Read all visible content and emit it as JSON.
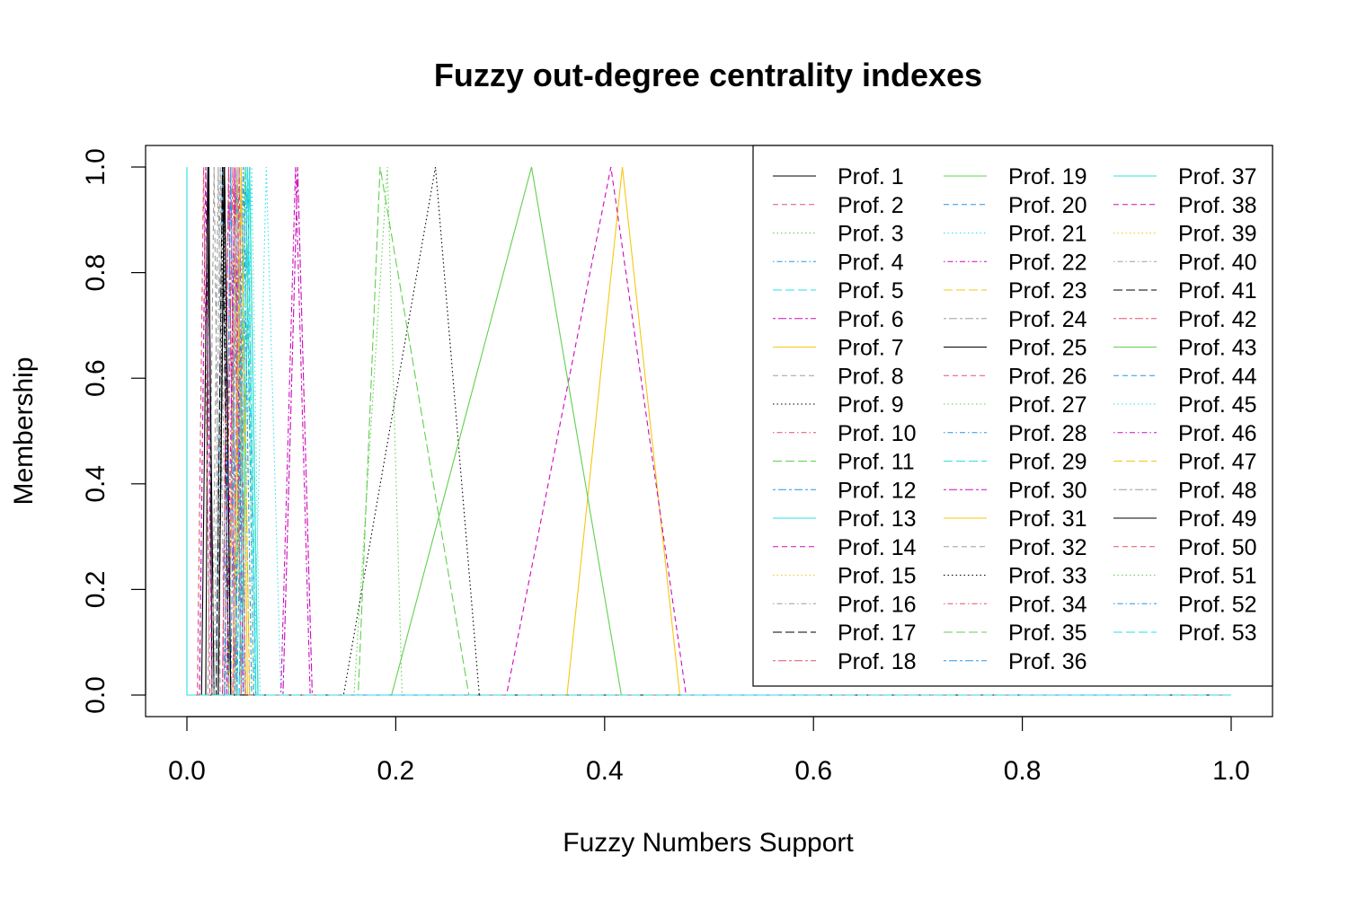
{
  "chart_data": {
    "type": "line",
    "title": "Fuzzy out-degree centrality indexes",
    "xlabel": "Fuzzy Numbers Support",
    "ylabel": "Membership",
    "xlim": [
      0,
      1
    ],
    "ylim": [
      0,
      1
    ],
    "x_ticks": [
      "0.0",
      "0.2",
      "0.4",
      "0.6",
      "0.8",
      "1.0"
    ],
    "y_ticks": [
      "0.0",
      "0.2",
      "0.4",
      "0.6",
      "0.8",
      "1.0"
    ],
    "grid": false,
    "legend_position": "top-right",
    "series": [
      {
        "name": "Prof. 1",
        "color": "#000000",
        "dash": "solid",
        "tri": [
          0.018,
          0.021,
          0.024
        ]
      },
      {
        "name": "Prof. 2",
        "color": "#DF536B",
        "dash": "dashed",
        "tri": [
          0.01,
          0.016,
          0.022
        ]
      },
      {
        "name": "Prof. 3",
        "color": "#61D04F",
        "dash": "dotted",
        "tri": [
          0.04,
          0.048,
          0.056
        ]
      },
      {
        "name": "Prof. 4",
        "color": "#2297E6",
        "dash": "dotdash",
        "tri": [
          0.028,
          0.034,
          0.04
        ]
      },
      {
        "name": "Prof. 5",
        "color": "#28E2E5",
        "dash": "longdash",
        "tri": [
          0.05,
          0.058,
          0.066
        ]
      },
      {
        "name": "Prof. 6",
        "color": "#CD0BBC",
        "dash": "twodash",
        "tri": [
          0.034,
          0.04,
          0.046
        ]
      },
      {
        "name": "Prof. 7",
        "color": "#F5C710",
        "dash": "solid",
        "tri": [
          0.046,
          0.052,
          0.058
        ]
      },
      {
        "name": "Prof. 8",
        "color": "#9E9E9E",
        "dash": "dashed",
        "tri": [
          0.02,
          0.026,
          0.032
        ]
      },
      {
        "name": "Prof. 9",
        "color": "#000000",
        "dash": "dotted",
        "tri": [
          0.03,
          0.035,
          0.04
        ]
      },
      {
        "name": "Prof. 10",
        "color": "#DF536B",
        "dash": "dotdash",
        "tri": [
          0.036,
          0.042,
          0.048
        ]
      },
      {
        "name": "Prof. 11",
        "color": "#61D04F",
        "dash": "longdash",
        "tri": [
          0.052,
          0.06,
          0.068
        ]
      },
      {
        "name": "Prof. 12",
        "color": "#2297E6",
        "dash": "twodash",
        "tri": [
          0.042,
          0.048,
          0.054
        ]
      },
      {
        "name": "Prof. 13",
        "color": "#28E2E5",
        "dash": "solid",
        "tri": [
          0.0,
          0.0,
          0.0
        ]
      },
      {
        "name": "Prof. 14",
        "color": "#CD0BBC",
        "dash": "dashed",
        "tri": [
          0.012,
          0.018,
          0.024
        ]
      },
      {
        "name": "Prof. 15",
        "color": "#F5C710",
        "dash": "dotted",
        "tri": [
          0.046,
          0.054,
          0.062
        ]
      },
      {
        "name": "Prof. 16",
        "color": "#9E9E9E",
        "dash": "dotdash",
        "tri": [
          0.044,
          0.05,
          0.056
        ]
      },
      {
        "name": "Prof. 17",
        "color": "#000000",
        "dash": "longdash",
        "tri": [
          0.028,
          0.034,
          0.04
        ]
      },
      {
        "name": "Prof. 18",
        "color": "#DF536B",
        "dash": "twodash",
        "tri": [
          0.036,
          0.044,
          0.052
        ]
      },
      {
        "name": "Prof. 19",
        "color": "#61D04F",
        "dash": "solid",
        "tri": [
          0.052,
          0.06,
          0.068
        ]
      },
      {
        "name": "Prof. 20",
        "color": "#2297E6",
        "dash": "dashed",
        "tri": [
          0.048,
          0.056,
          0.064
        ]
      },
      {
        "name": "Prof. 21",
        "color": "#28E2E5",
        "dash": "dotted",
        "tri": [
          0.064,
          0.076,
          0.09
        ]
      },
      {
        "name": "Prof. 22",
        "color": "#CD0BBC",
        "dash": "dotdash",
        "tri": [
          0.09,
          0.104,
          0.118
        ]
      },
      {
        "name": "Prof. 23",
        "color": "#F5C710",
        "dash": "longdash",
        "tri": [
          0.04,
          0.048,
          0.056
        ]
      },
      {
        "name": "Prof. 24",
        "color": "#9E9E9E",
        "dash": "twodash",
        "tri": [
          0.044,
          0.052,
          0.06
        ]
      },
      {
        "name": "Prof. 25",
        "color": "#000000",
        "dash": "solid",
        "tri": [
          0.014,
          0.02,
          0.026
        ]
      },
      {
        "name": "Prof. 26",
        "color": "#DF536B",
        "dash": "dashed",
        "tri": [
          0.03,
          0.036,
          0.042
        ]
      },
      {
        "name": "Prof. 27",
        "color": "#61D04F",
        "dash": "dotted",
        "tri": [
          0.16,
          0.192,
          0.206
        ]
      },
      {
        "name": "Prof. 28",
        "color": "#2297E6",
        "dash": "dotdash",
        "tri": [
          0.04,
          0.046,
          0.052
        ]
      },
      {
        "name": "Prof. 29",
        "color": "#28E2E5",
        "dash": "longdash",
        "tri": [
          0.046,
          0.056,
          0.066
        ]
      },
      {
        "name": "Prof. 30",
        "color": "#CD0BBC",
        "dash": "twodash",
        "tri": [
          0.092,
          0.106,
          0.12
        ]
      },
      {
        "name": "Prof. 31",
        "color": "#F5C710",
        "dash": "solid",
        "tri": [
          0.364,
          0.417,
          0.472
        ]
      },
      {
        "name": "Prof. 32",
        "color": "#9E9E9E",
        "dash": "dashed",
        "tri": [
          0.024,
          0.03,
          0.036
        ]
      },
      {
        "name": "Prof. 33",
        "color": "#000000",
        "dash": "dotted",
        "tri": [
          0.15,
          0.238,
          0.28
        ]
      },
      {
        "name": "Prof. 34",
        "color": "#DF536B",
        "dash": "dotdash",
        "tri": [
          0.034,
          0.04,
          0.046
        ]
      },
      {
        "name": "Prof. 35",
        "color": "#61D04F",
        "dash": "longdash",
        "tri": [
          0.164,
          0.185,
          0.27
        ]
      },
      {
        "name": "Prof. 36",
        "color": "#2297E6",
        "dash": "twodash",
        "tri": [
          0.036,
          0.042,
          0.048
        ]
      },
      {
        "name": "Prof. 37",
        "color": "#28E2E5",
        "dash": "solid",
        "tri": [
          0.052,
          0.06,
          0.068
        ]
      },
      {
        "name": "Prof. 38",
        "color": "#CD0BBC",
        "dash": "dashed",
        "tri": [
          0.306,
          0.406,
          0.478
        ]
      },
      {
        "name": "Prof. 39",
        "color": "#F5C710",
        "dash": "dotted",
        "tri": [
          0.04,
          0.046,
          0.052
        ]
      },
      {
        "name": "Prof. 40",
        "color": "#9E9E9E",
        "dash": "dotdash",
        "tri": [
          0.026,
          0.032,
          0.038
        ]
      },
      {
        "name": "Prof. 41",
        "color": "#000000",
        "dash": "longdash",
        "tri": [
          0.03,
          0.036,
          0.042
        ]
      },
      {
        "name": "Prof. 42",
        "color": "#DF536B",
        "dash": "twodash",
        "tri": [
          0.04,
          0.046,
          0.052
        ]
      },
      {
        "name": "Prof. 43",
        "color": "#61D04F",
        "dash": "solid",
        "tri": [
          0.196,
          0.33,
          0.416
        ]
      },
      {
        "name": "Prof. 44",
        "color": "#2297E6",
        "dash": "dashed",
        "tri": [
          0.05,
          0.058,
          0.066
        ]
      },
      {
        "name": "Prof. 45",
        "color": "#28E2E5",
        "dash": "dotted",
        "tri": [
          0.054,
          0.062,
          0.07
        ]
      },
      {
        "name": "Prof. 46",
        "color": "#CD0BBC",
        "dash": "dotdash",
        "tri": [
          0.038,
          0.046,
          0.054
        ]
      },
      {
        "name": "Prof. 47",
        "color": "#F5C710",
        "dash": "longdash",
        "tri": [
          0.044,
          0.052,
          0.06
        ]
      },
      {
        "name": "Prof. 48",
        "color": "#9E9E9E",
        "dash": "twodash",
        "tri": [
          0.04,
          0.048,
          0.056
        ]
      },
      {
        "name": "Prof. 49",
        "color": "#000000",
        "dash": "solid",
        "tri": [
          0.03,
          0.036,
          0.042
        ]
      },
      {
        "name": "Prof. 50",
        "color": "#DF536B",
        "dash": "dashed",
        "tri": [
          0.044,
          0.05,
          0.056
        ]
      },
      {
        "name": "Prof. 51",
        "color": "#61D04F",
        "dash": "dotted",
        "tri": [
          0.048,
          0.056,
          0.064
        ]
      },
      {
        "name": "Prof. 52",
        "color": "#2297E6",
        "dash": "dotdash",
        "tri": [
          0.046,
          0.054,
          0.062
        ]
      },
      {
        "name": "Prof. 53",
        "color": "#28E2E5",
        "dash": "longdash",
        "tri": [
          0.05,
          0.058,
          0.066
        ]
      }
    ]
  }
}
